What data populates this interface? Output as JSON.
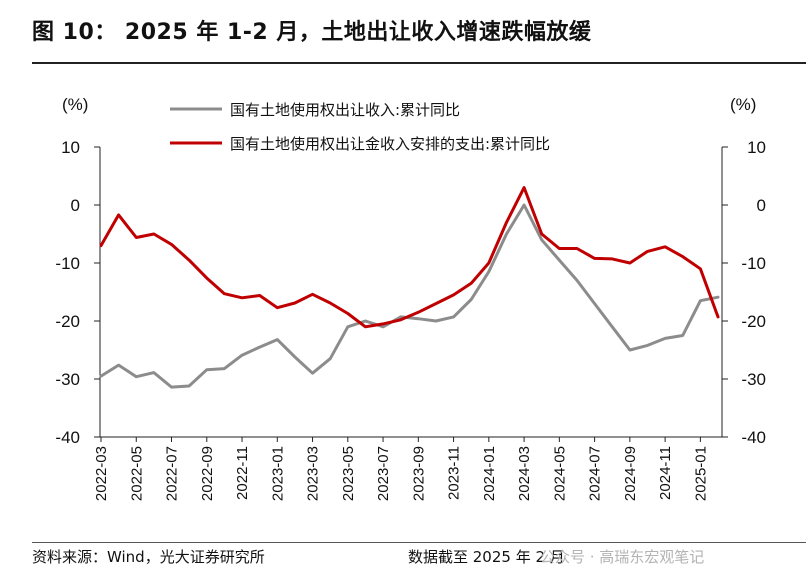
{
  "header": {
    "title": "图 10： 2025 年 1-2 月，土地出让收入增速跌幅放缓"
  },
  "footer": {
    "source": "资料来源：Wind，光大证券研究所",
    "date": "数据截至 2025 年 2 月",
    "watermark": "公众号 · 高瑞东宏观笔记"
  },
  "chart_data": {
    "type": "line",
    "ylabel_left": "(%)",
    "ylabel_right": "(%)",
    "ylim": [
      -40,
      10
    ],
    "yticks": [
      10,
      0,
      -10,
      -20,
      -30,
      -40
    ],
    "x_tick_labels": [
      "2022-03",
      "2022-05",
      "2022-07",
      "2022-09",
      "2022-11",
      "2023-01",
      "2023-03",
      "2023-05",
      "2023-07",
      "2023-09",
      "2023-11",
      "2024-01",
      "2024-03",
      "2024-05",
      "2024-07",
      "2024-09",
      "2024-11",
      "2025-01"
    ],
    "x": [
      "2022-03",
      "2022-04",
      "2022-05",
      "2022-06",
      "2022-07",
      "2022-08",
      "2022-09",
      "2022-10",
      "2022-11",
      "2022-12",
      "2023-01",
      "2023-02",
      "2023-03",
      "2023-04",
      "2023-05",
      "2023-06",
      "2023-07",
      "2023-08",
      "2023-09",
      "2023-10",
      "2023-11",
      "2023-12",
      "2024-01",
      "2024-02",
      "2024-03",
      "2024-04",
      "2024-05",
      "2024-06",
      "2024-07",
      "2024-08",
      "2024-09",
      "2024-10",
      "2024-11",
      "2024-12",
      "2025-01",
      "2025-02"
    ],
    "legend_position": "top-center",
    "series": [
      {
        "name": "国有土地使用权出让收入:累计同比",
        "color": "#8c8c8c",
        "values": [
          -29.5,
          -27.6,
          -29.6,
          -28.9,
          -31.4,
          -31.2,
          -28.4,
          -28.2,
          -25.9,
          -24.5,
          -23.2,
          -26.2,
          -29.0,
          -26.5,
          -21.0,
          -20.0,
          -21.0,
          -19.3,
          -19.6,
          -20.0,
          -19.3,
          -16.3,
          -11.5,
          -5.0,
          0.0,
          -6.0,
          -9.5,
          -13.0,
          -17.0,
          -21.0,
          -25.0,
          -24.2,
          -23.0,
          -22.5,
          -16.5,
          -15.9
        ]
      },
      {
        "name": "国有土地使用权出让金收入安排的支出:累计同比",
        "color": "#c00000",
        "values": [
          -7.0,
          -1.7,
          -5.6,
          -5.0,
          -6.8,
          -9.5,
          -12.6,
          -15.3,
          -16.0,
          -15.6,
          -17.7,
          -16.9,
          -15.4,
          -16.9,
          -18.7,
          -21.0,
          -20.5,
          -19.8,
          -18.5,
          -17.0,
          -15.5,
          -13.5,
          -10.0,
          -3.0,
          3.0,
          -5.0,
          -7.5,
          -7.5,
          -9.2,
          -9.3,
          -10.0,
          -8.0,
          -7.2,
          -8.9,
          -11.0,
          -19.3
        ]
      }
    ]
  }
}
